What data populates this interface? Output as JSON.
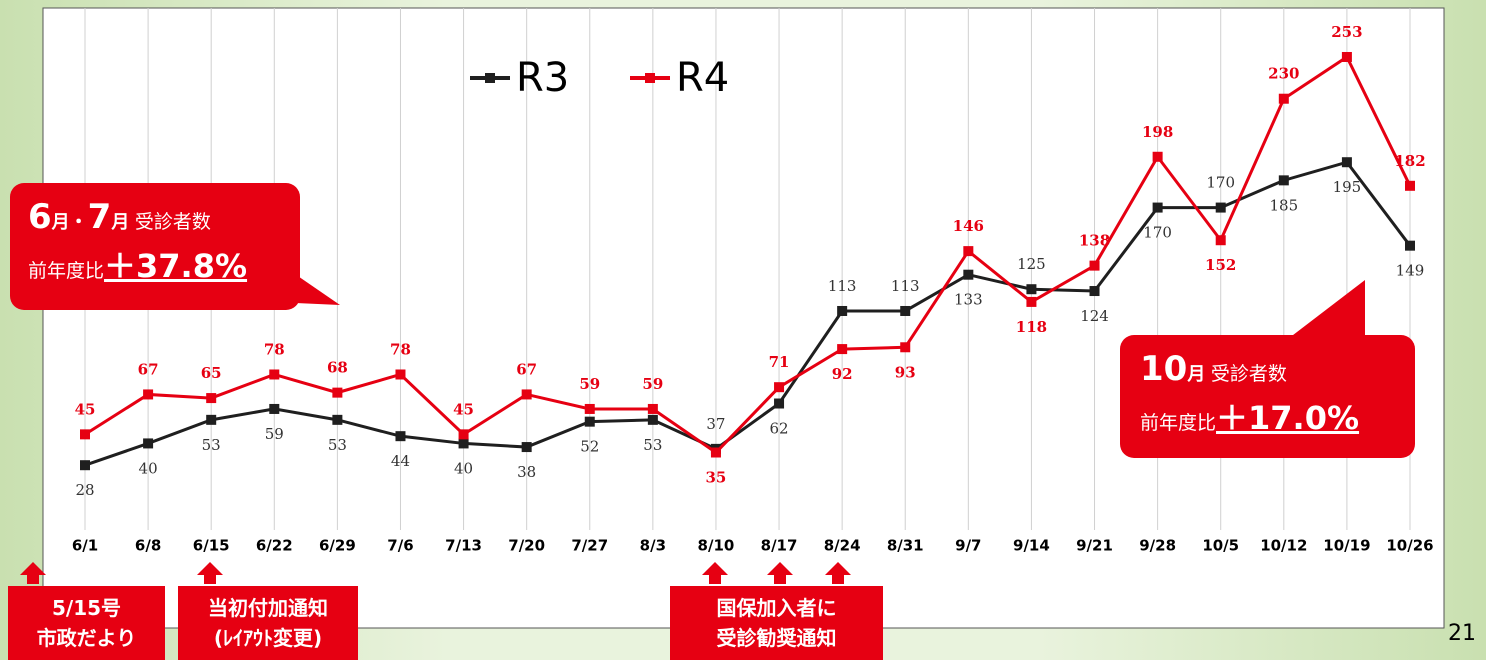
{
  "chart_data": {
    "type": "line",
    "categories": [
      "6/1",
      "6/8",
      "6/15",
      "6/22",
      "6/29",
      "7/6",
      "7/13",
      "7/20",
      "7/27",
      "8/3",
      "8/10",
      "8/17",
      "8/24",
      "8/31",
      "9/7",
      "9/14",
      "9/21",
      "9/28",
      "10/5",
      "10/12",
      "10/19",
      "10/26"
    ],
    "series": [
      {
        "name": "R3",
        "color": "#1f1f1f",
        "values": [
          28,
          40,
          53,
          59,
          53,
          44,
          40,
          38,
          52,
          53,
          37,
          62,
          113,
          113,
          133,
          125,
          124,
          170,
          170,
          185,
          195,
          149
        ]
      },
      {
        "name": "R4",
        "color": "#e60012",
        "values": [
          45,
          67,
          65,
          78,
          68,
          78,
          45,
          67,
          59,
          59,
          35,
          71,
          92,
          93,
          146,
          118,
          138,
          198,
          152,
          230,
          253,
          182
        ]
      }
    ],
    "ylim": [
      0,
      280
    ],
    "grid": true
  },
  "callouts": [
    {
      "month_a": "6",
      "unit_a": "月",
      "sep": "・",
      "month_b": "7",
      "unit_b": "月",
      "label": "受診者数",
      "ratio_label": "前年度比",
      "ratio": "＋37.8%"
    },
    {
      "month_a": "10",
      "unit_a": "月",
      "label": "受診者数",
      "ratio_label": "前年度比",
      "ratio": "＋17.0%"
    }
  ],
  "notes": [
    {
      "lines": [
        "5/15号",
        "市政だより"
      ]
    },
    {
      "lines": [
        "当初付加通知",
        "(ﾚｲｱｳﾄ変更)"
      ]
    },
    {
      "lines": [
        "国保加入者に",
        "受診勧奨通知"
      ]
    }
  ],
  "page_number": "21"
}
